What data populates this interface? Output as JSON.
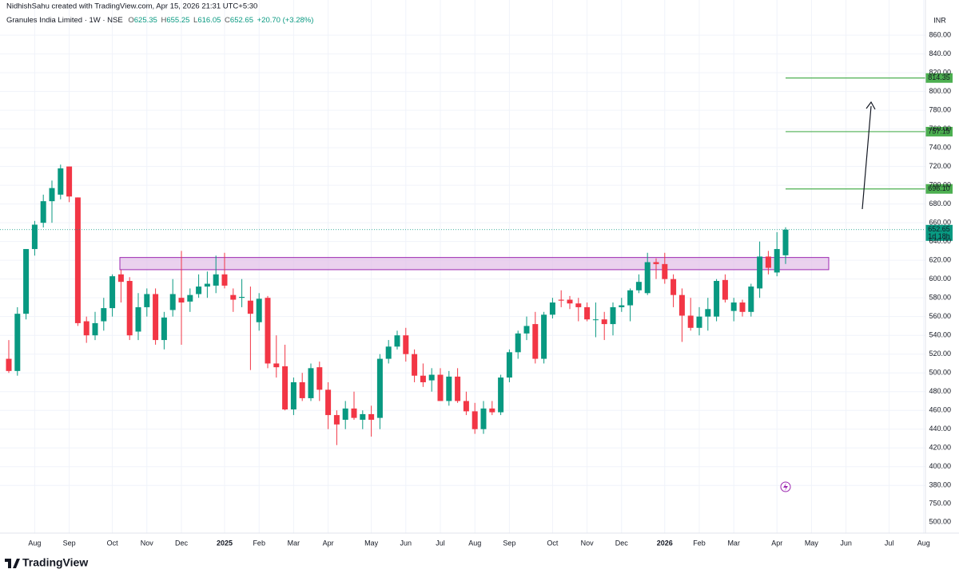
{
  "header": {
    "credit": "NidhishSahu created with TradingView.com, Apr 15, 2026 21:31 UTC+5:30",
    "symbol": "Granules India Limited · 1W · NSE",
    "open_label": "O",
    "high_label": "H",
    "low_label": "L",
    "close_label": "C",
    "change": "+20.70 (+3.28%)"
  },
  "chart_data": {
    "type": "candlestick",
    "currency": "INR",
    "categories": [
      null,
      null,
      null,
      "Aug",
      null,
      null,
      null,
      "Sep",
      null,
      null,
      null,
      null,
      "Oct",
      null,
      null,
      null,
      "Nov",
      null,
      null,
      null,
      "Dec",
      null,
      null,
      null,
      null,
      "2025",
      null,
      null,
      null,
      "Feb",
      null,
      null,
      null,
      "Mar",
      null,
      null,
      null,
      "Apr",
      null,
      null,
      null,
      null,
      "May",
      null,
      null,
      null,
      "Jun",
      null,
      null,
      null,
      "Jul",
      null,
      null,
      null,
      "Aug",
      null,
      null,
      null,
      "Sep",
      null,
      null,
      null,
      null,
      "Oct",
      null,
      null,
      null,
      "Nov",
      null,
      null,
      null,
      "Dec",
      null,
      null,
      null,
      null,
      "2026",
      null,
      null,
      null,
      "Feb",
      null,
      null,
      null,
      "Mar",
      null,
      null,
      null,
      null,
      "Apr",
      null
    ],
    "future_categories": [
      null,
      null,
      "May",
      null,
      null,
      null,
      "Jun",
      null,
      null,
      null,
      null,
      "Jul",
      null,
      null,
      null,
      "Aug"
    ],
    "open": [
      515,
      502,
      563,
      632,
      660,
      683,
      690,
      720,
      687,
      555,
      540,
      555,
      569,
      605,
      598,
      544,
      570,
      584,
      535,
      567,
      580,
      576,
      584,
      592,
      593,
      605,
      583,
      580,
      577,
      554,
      580,
      510,
      507,
      461,
      490,
      473,
      506,
      482,
      455,
      450,
      462,
      450,
      456,
      452,
      515,
      528,
      540,
      520,
      497,
      492,
      498,
      470,
      496,
      470,
      459,
      440,
      462,
      458,
      495,
      522,
      542,
      552,
      515,
      562,
      578,
      578,
      574,
      570,
      557,
      557,
      552,
      570,
      572,
      588,
      585,
      618,
      616,
      600,
      583,
      561,
      548,
      560,
      560,
      599,
      566,
      575,
      565,
      590,
      624,
      607,
      625.35
    ],
    "high": [
      535,
      570,
      632,
      662,
      690,
      705,
      722,
      720,
      687,
      560,
      565,
      580,
      605,
      610,
      602,
      585,
      590,
      590,
      565,
      600,
      630,
      590,
      605,
      608,
      625,
      628,
      590,
      600,
      592,
      585,
      582,
      540,
      530,
      495,
      500,
      510,
      512,
      490,
      460,
      470,
      480,
      460,
      465,
      520,
      535,
      545,
      548,
      525,
      510,
      505,
      505,
      502,
      505,
      480,
      468,
      470,
      470,
      498,
      525,
      545,
      560,
      565,
      565,
      580,
      588,
      582,
      580,
      575,
      575,
      565,
      575,
      580,
      590,
      605,
      628,
      622,
      628,
      605,
      590,
      580,
      570,
      580,
      600,
      605,
      580,
      578,
      595,
      640,
      630,
      650,
      655.25
    ],
    "low": [
      500,
      497,
      557,
      625,
      655,
      660,
      685,
      682,
      550,
      532,
      535,
      545,
      560,
      575,
      535,
      535,
      560,
      530,
      525,
      560,
      530,
      565,
      580,
      580,
      585,
      590,
      565,
      570,
      503,
      545,
      505,
      495,
      460,
      455,
      470,
      470,
      470,
      440,
      423,
      440,
      450,
      440,
      432,
      440,
      510,
      525,
      512,
      490,
      485,
      480,
      470,
      465,
      468,
      455,
      435,
      435,
      455,
      455,
      490,
      515,
      535,
      510,
      510,
      558,
      570,
      568,
      555,
      555,
      538,
      535,
      540,
      565,
      555,
      585,
      583,
      600,
      595,
      570,
      533,
      545,
      540,
      545,
      555,
      575,
      555,
      560,
      560,
      580,
      605,
      603,
      616.05
    ],
    "close": [
      502,
      563,
      632,
      658,
      683,
      697,
      718,
      688,
      553,
      540,
      553,
      569,
      603,
      597,
      540,
      570,
      584,
      535,
      559,
      584,
      575,
      583,
      592,
      595,
      605,
      593,
      578,
      581,
      563,
      579,
      510,
      506,
      461,
      490,
      473,
      505,
      482,
      455,
      445,
      462,
      452,
      456,
      450,
      515,
      528,
      540,
      520,
      497,
      490,
      498,
      470,
      496,
      470,
      459,
      440,
      462,
      458,
      495,
      522,
      542,
      550,
      515,
      562,
      575,
      577,
      574,
      570,
      557,
      557,
      552,
      570,
      572,
      588,
      597,
      618,
      616,
      600,
      583,
      561,
      548,
      560,
      568,
      598,
      578,
      575,
      565,
      592,
      624,
      612,
      632,
      652.65
    ],
    "up_color": "#089981",
    "down_color": "#f23645",
    "ylim": [
      370,
      897.5
    ],
    "yticks": [
      {
        "value": 860,
        "label": "860.00"
      },
      {
        "value": 840,
        "label": "840.00"
      },
      {
        "value": 820,
        "label": "820.00"
      },
      {
        "value": 800,
        "label": "800.00"
      },
      {
        "value": 780,
        "label": "780.00"
      },
      {
        "value": 760,
        "label": "760.00"
      },
      {
        "value": 740,
        "label": "740.00"
      },
      {
        "value": 720,
        "label": "720.00"
      },
      {
        "value": 700,
        "label": "700.00"
      },
      {
        "value": 680,
        "label": "680.00"
      },
      {
        "value": 660,
        "label": "660.00"
      },
      {
        "value": 640,
        "label": "640.00"
      },
      {
        "value": 620,
        "label": "620.00"
      },
      {
        "value": 600,
        "label": "600.00"
      },
      {
        "value": 580,
        "label": "580.00"
      },
      {
        "value": 560,
        "label": "560.00"
      },
      {
        "value": 540,
        "label": "540.00"
      },
      {
        "value": 520,
        "label": "520.00"
      },
      {
        "value": 500,
        "label": "500.00"
      },
      {
        "value": 480,
        "label": "480.00"
      },
      {
        "value": 460,
        "label": "460.00"
      },
      {
        "value": 440,
        "label": "440.00"
      },
      {
        "value": 420,
        "label": "420.00"
      },
      {
        "value": 400,
        "label": "400.00"
      },
      {
        "value": 380,
        "label": "380.00"
      }
    ],
    "lower_pane_ticks": [
      "750.00",
      "500.00"
    ],
    "grid": true,
    "levels": [
      {
        "value": 814.35,
        "color": "#4caf50"
      },
      {
        "value": 757.15,
        "color": "#4caf50"
      },
      {
        "value": 696.1,
        "color": "#4caf50",
        "label": "696.10"
      }
    ],
    "zone": {
      "low": 610,
      "high": 623,
      "fill": "#e1bee7",
      "stroke": "#9c27b0"
    },
    "last_price_countdown": "1d 18h"
  },
  "footer": {
    "brand": "TradingView"
  }
}
